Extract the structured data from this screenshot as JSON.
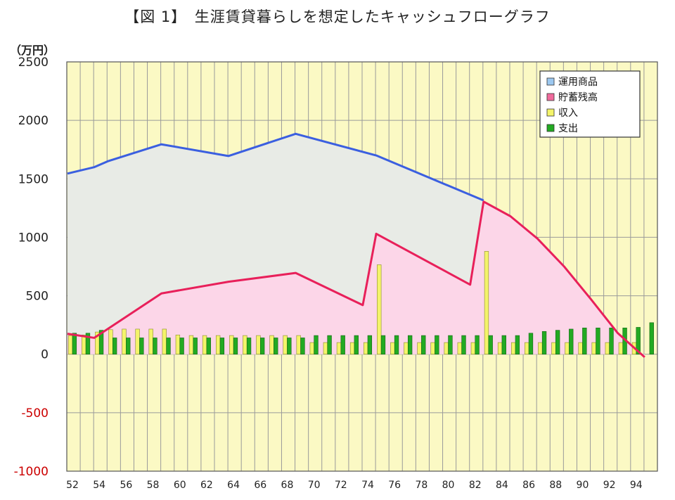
{
  "chart_data": {
    "type": "bar+line+area",
    "title": "【図 1】　生涯賃貸暮らしを想定したキャッシュフローグラフ",
    "y_unit_label": "（万円）",
    "ylim": [
      -1000,
      2500
    ],
    "yticks": [
      2500,
      2000,
      1500,
      1000,
      500,
      0,
      -500,
      -1000
    ],
    "xlim": [
      52,
      95
    ],
    "xticks": [
      52,
      54,
      56,
      58,
      60,
      62,
      64,
      66,
      68,
      70,
      72,
      74,
      76,
      78,
      80,
      82,
      84,
      86,
      88,
      90,
      92,
      94
    ],
    "grid": true,
    "legend_position": "top-right",
    "legend": [
      {
        "key": "investment",
        "label": "運用商品",
        "color": "#9cc8f0"
      },
      {
        "key": "savings",
        "label": "貯蓄残高",
        "color": "#f06a9c"
      },
      {
        "key": "income",
        "label": "収入",
        "color": "#f4f46a"
      },
      {
        "key": "expense",
        "label": "支出",
        "color": "#22aa22"
      }
    ],
    "colors": {
      "background": "#fbf9c4",
      "investment_line": "#3b5fe0",
      "investment_fill": "#e8ebe6",
      "savings_line": "#e8205a",
      "savings_fill": "#fcd6e8",
      "income_bar": "#f4f46a",
      "expense_bar": "#22aa22",
      "negative_tick": "#cc0000"
    },
    "series": [
      {
        "name": "運用商品",
        "type": "line-area",
        "x": [
          52,
          54,
          55,
          59,
          64,
          69,
          75,
          83
        ],
        "values": [
          1545,
          1600,
          1650,
          1795,
          1695,
          1885,
          1700,
          1315
        ]
      },
      {
        "name": "貯蓄残高",
        "type": "line-area",
        "x": [
          52,
          54,
          59,
          64,
          69,
          74,
          75,
          82,
          83,
          85,
          87,
          89,
          91,
          93,
          95
        ],
        "values": [
          175,
          140,
          520,
          620,
          695,
          420,
          1030,
          595,
          1305,
          1180,
          990,
          750,
          470,
          180,
          -25
        ]
      },
      {
        "name": "収入",
        "type": "bar",
        "x": [
          52,
          53,
          54,
          55,
          56,
          57,
          58,
          59,
          60,
          61,
          62,
          63,
          64,
          65,
          66,
          67,
          68,
          69,
          70,
          71,
          72,
          73,
          74,
          75,
          76,
          77,
          78,
          79,
          80,
          81,
          82,
          83,
          84,
          85,
          86,
          87,
          88,
          89,
          90,
          91,
          92,
          93,
          94
        ],
        "values": [
          160,
          165,
          190,
          210,
          215,
          215,
          215,
          215,
          165,
          160,
          160,
          160,
          160,
          160,
          160,
          160,
          160,
          160,
          100,
          100,
          100,
          100,
          100,
          765,
          100,
          100,
          100,
          100,
          100,
          100,
          100,
          880,
          100,
          100,
          100,
          100,
          100,
          100,
          100,
          100,
          100,
          100,
          100
        ]
      },
      {
        "name": "支出",
        "type": "bar",
        "x": [
          52,
          53,
          54,
          55,
          56,
          57,
          58,
          59,
          60,
          61,
          62,
          63,
          64,
          65,
          66,
          67,
          68,
          69,
          70,
          71,
          72,
          73,
          74,
          75,
          76,
          77,
          78,
          79,
          80,
          81,
          82,
          83,
          84,
          85,
          86,
          87,
          88,
          89,
          90,
          91,
          92,
          93,
          94,
          95
        ],
        "values": [
          180,
          180,
          205,
          140,
          140,
          140,
          140,
          140,
          140,
          140,
          140,
          140,
          140,
          140,
          140,
          140,
          140,
          140,
          160,
          160,
          160,
          160,
          160,
          160,
          160,
          160,
          160,
          160,
          160,
          160,
          160,
          160,
          160,
          160,
          180,
          195,
          205,
          215,
          225,
          225,
          225,
          225,
          230,
          270
        ]
      }
    ]
  }
}
